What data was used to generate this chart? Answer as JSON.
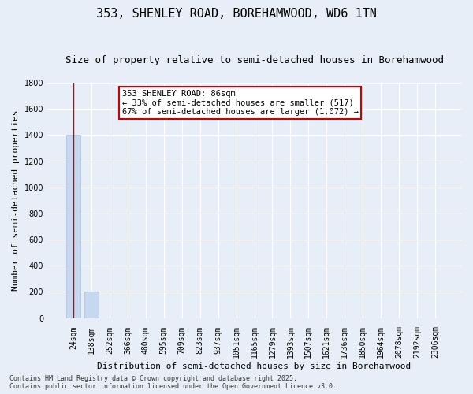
{
  "title": "353, SHENLEY ROAD, BOREHAMWOOD, WD6 1TN",
  "subtitle": "Size of property relative to semi-detached houses in Borehamwood",
  "xlabel": "Distribution of semi-detached houses by size in Borehamwood",
  "ylabel": "Number of semi-detached properties",
  "categories": [
    "24sqm",
    "138sqm",
    "252sqm",
    "366sqm",
    "480sqm",
    "595sqm",
    "709sqm",
    "823sqm",
    "937sqm",
    "1051sqm",
    "1165sqm",
    "1279sqm",
    "1393sqm",
    "1507sqm",
    "1621sqm",
    "1736sqm",
    "1850sqm",
    "1964sqm",
    "2078sqm",
    "2192sqm",
    "2306sqm"
  ],
  "values": [
    1400,
    200,
    0,
    0,
    0,
    0,
    0,
    0,
    0,
    0,
    0,
    0,
    0,
    0,
    0,
    0,
    0,
    0,
    0,
    0,
    0
  ],
  "bar_color": "#c5d8f0",
  "ylim": [
    0,
    1800
  ],
  "yticks": [
    0,
    200,
    400,
    600,
    800,
    1000,
    1200,
    1400,
    1600,
    1800
  ],
  "annotation_title": "353 SHENLEY ROAD: 86sqm",
  "annotation_line1": "← 33% of semi-detached houses are smaller (517)",
  "annotation_line2": "67% of semi-detached houses are larger (1,072) →",
  "annotation_box_color": "#ffffff",
  "annotation_box_edge": "#cc0000",
  "red_line_x": 0,
  "footer": "Contains HM Land Registry data © Crown copyright and database right 2025.\nContains public sector information licensed under the Open Government Licence v3.0.",
  "bg_color": "#e8eef8",
  "grid_color": "#ffffff",
  "title_fontsize": 11,
  "subtitle_fontsize": 9,
  "tick_fontsize": 7,
  "ylabel_fontsize": 8,
  "xlabel_fontsize": 8,
  "footer_fontsize": 6
}
